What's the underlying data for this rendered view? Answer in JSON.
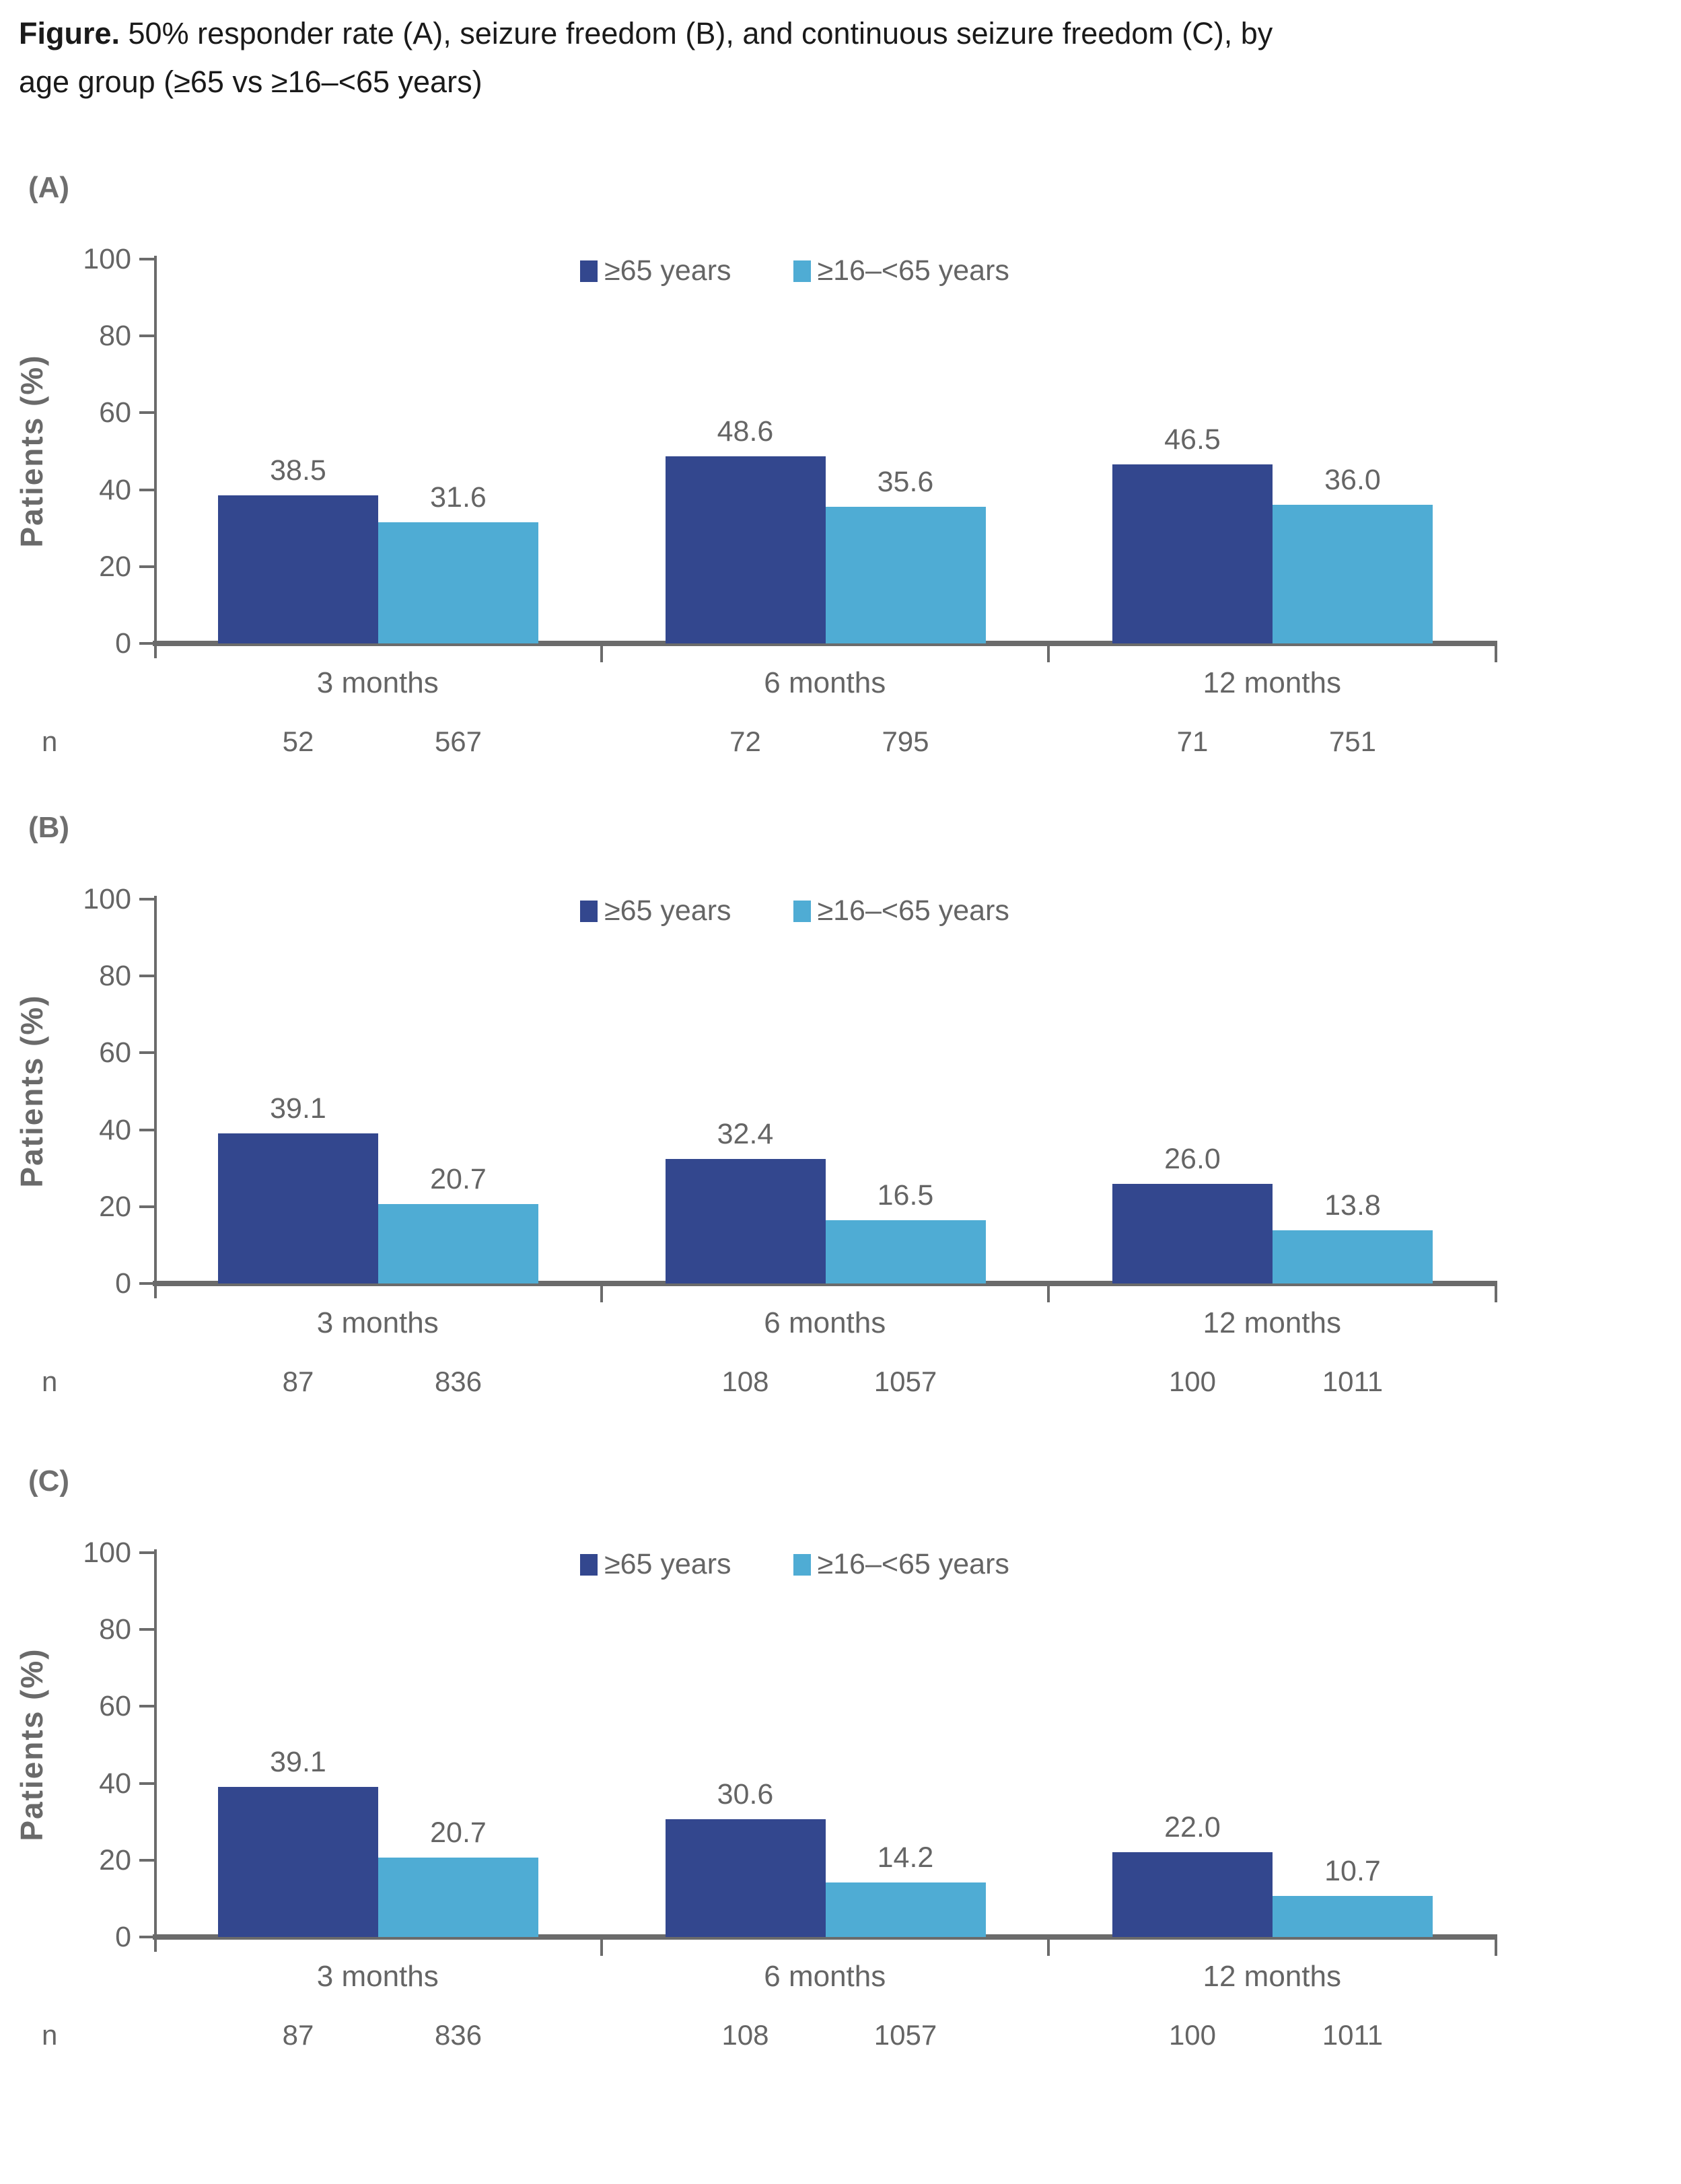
{
  "title": {
    "bold": "Figure.",
    "line1_rest": " 50% responder rate (A), seizure freedom (B), and continuous seizure freedom (C), by",
    "line2": "age group (≥65 vs ≥16–<65 years)"
  },
  "colors": {
    "series1": "#33478E",
    "series2": "#4FACD4",
    "axis": "#6B6B6B",
    "text_gray": "#656565",
    "panel_label_gray": "#6E6E6E",
    "title_text": "#1A1A1A"
  },
  "y_axis": {
    "label": "Patients (%)",
    "ticks": [
      100,
      80,
      60,
      40,
      20,
      0
    ]
  },
  "n_row_label": "n",
  "chart_data": [
    {
      "panel_label": "(A)",
      "type": "bar",
      "categories": [
        "3 months",
        "6 months",
        "12 months"
      ],
      "series": [
        {
          "name": "≥65 years",
          "color_key": "series1",
          "values": [
            "38.5",
            "48.6",
            "46.5"
          ],
          "n": [
            "52",
            "72",
            "71"
          ]
        },
        {
          "name": "≥16–<65 years",
          "color_key": "series2",
          "values": [
            "31.6",
            "35.6",
            "36.0"
          ],
          "n": [
            "567",
            "795",
            "751"
          ]
        }
      ],
      "ylabel": "Patients (%)",
      "ylim": [
        0,
        100
      ],
      "yticks": [
        100,
        80,
        60,
        40,
        20,
        0
      ],
      "legend_position": "top-center",
      "grid": false,
      "n_row_label": "n"
    },
    {
      "panel_label": "(B)",
      "type": "bar",
      "categories": [
        "3 months",
        "6 months",
        "12 months"
      ],
      "series": [
        {
          "name": "≥65 years",
          "color_key": "series1",
          "values": [
            "39.1",
            "32.4",
            "26.0"
          ],
          "n": [
            "87",
            "108",
            "100"
          ]
        },
        {
          "name": "≥16–<65 years",
          "color_key": "series2",
          "values": [
            "20.7",
            "16.5",
            "13.8"
          ],
          "n": [
            "836",
            "1057",
            "1011"
          ]
        }
      ],
      "ylabel": "Patients (%)",
      "ylim": [
        0,
        100
      ],
      "yticks": [
        100,
        80,
        60,
        40,
        20,
        0
      ],
      "legend_position": "top-center",
      "grid": false,
      "n_row_label": "n"
    },
    {
      "panel_label": "(C)",
      "type": "bar",
      "categories": [
        "3 months",
        "6 months",
        "12 months"
      ],
      "series": [
        {
          "name": "≥65 years",
          "color_key": "series1",
          "values": [
            "39.1",
            "30.6",
            "22.0"
          ],
          "n": [
            "87",
            "108",
            "100"
          ]
        },
        {
          "name": "≥16–<65 years",
          "color_key": "series2",
          "values": [
            "20.7",
            "14.2",
            "10.7"
          ],
          "n": [
            "836",
            "1057",
            "1011"
          ]
        }
      ],
      "ylabel": "Patients (%)",
      "ylim": [
        0,
        100
      ],
      "yticks": [
        100,
        80,
        60,
        40,
        20,
        0
      ],
      "legend_position": "top-center",
      "grid": false,
      "n_row_label": "n"
    }
  ]
}
